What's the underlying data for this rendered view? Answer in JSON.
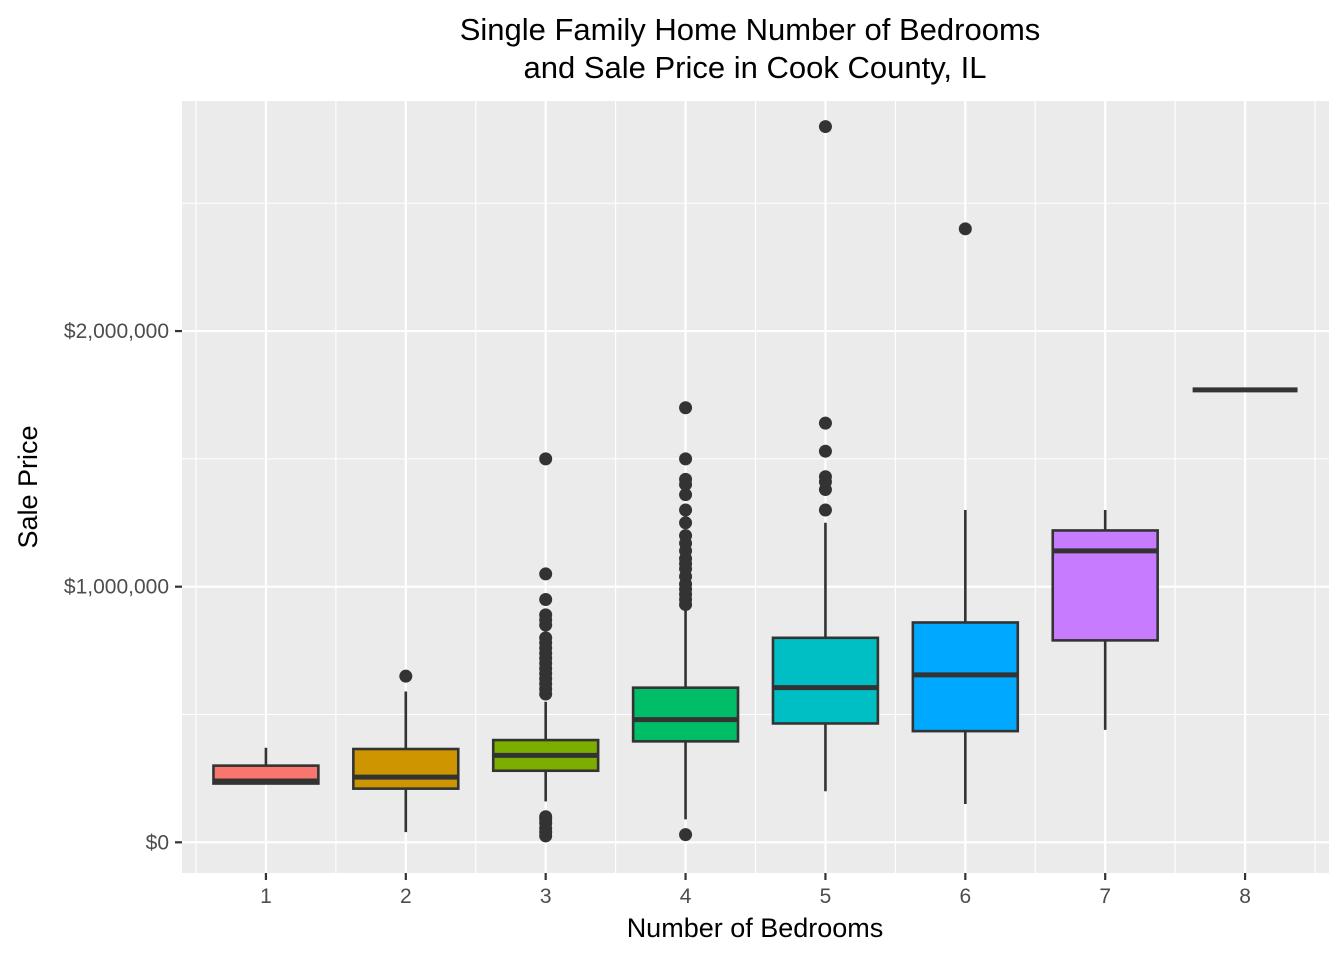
{
  "chart_data": {
    "type": "boxplot",
    "title": [
      "Single Family Home Number of Bedrooms",
      "and Sale Price in Cook County, IL"
    ],
    "xlabel": "Number of Bedrooms",
    "ylabel": "Sale Price",
    "y_tick_values": [
      0,
      1000000,
      2000000
    ],
    "y_tick_labels": [
      "$0",
      "$1,000,000",
      "$2,000,000"
    ],
    "ylim": [
      -120000,
      2900000
    ],
    "grid": true,
    "legend": "none",
    "categories": [
      "1",
      "2",
      "3",
      "4",
      "5",
      "6",
      "7",
      "8"
    ],
    "colors": [
      "#F8766D",
      "#CD9600",
      "#7CAE00",
      "#00BE67",
      "#00BFC4",
      "#00A9FF",
      "#C77CFF",
      "#FF61CC"
    ],
    "boxes": [
      {
        "category": "1",
        "min": 230000,
        "q1": 230000,
        "median": 240000,
        "q3": 300000,
        "max": 370000,
        "outliers": []
      },
      {
        "category": "2",
        "min": 40000,
        "q1": 210000,
        "median": 255000,
        "q3": 365000,
        "max": 590000,
        "outliers": [
          650000
        ]
      },
      {
        "category": "3",
        "min": 160000,
        "q1": 280000,
        "median": 340000,
        "q3": 400000,
        "max": 550000,
        "outliers": [
          25000,
          40000,
          55000,
          75000,
          90000,
          100000,
          580000,
          600000,
          620000,
          640000,
          660000,
          680000,
          700000,
          720000,
          740000,
          760000,
          780000,
          800000,
          850000,
          870000,
          890000,
          950000,
          1050000,
          1500000
        ]
      },
      {
        "category": "4",
        "min": 90000,
        "q1": 395000,
        "median": 480000,
        "q3": 605000,
        "max": 910000,
        "outliers": [
          30000,
          930000,
          950000,
          970000,
          990000,
          1010000,
          1040000,
          1070000,
          1090000,
          1110000,
          1140000,
          1170000,
          1200000,
          1250000,
          1300000,
          1360000,
          1400000,
          1420000,
          1500000,
          1700000
        ]
      },
      {
        "category": "5",
        "min": 200000,
        "q1": 465000,
        "median": 605000,
        "q3": 800000,
        "max": 1250000,
        "outliers": [
          1300000,
          1380000,
          1410000,
          1430000,
          1530000,
          1640000,
          2800000
        ]
      },
      {
        "category": "6",
        "min": 150000,
        "q1": 435000,
        "median": 655000,
        "q3": 860000,
        "max": 1300000,
        "outliers": [
          2400000
        ]
      },
      {
        "category": "7",
        "min": 440000,
        "q1": 790000,
        "median": 1140000,
        "q3": 1220000,
        "max": 1300000,
        "outliers": []
      },
      {
        "category": "8",
        "min": 1770000,
        "q1": 1770000,
        "median": 1770000,
        "q3": 1770000,
        "max": 1770000,
        "outliers": []
      }
    ]
  }
}
